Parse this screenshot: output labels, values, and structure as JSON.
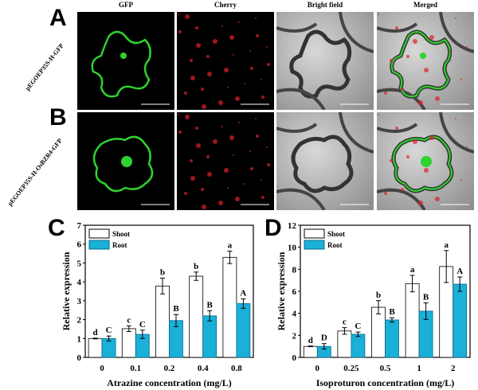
{
  "panels": {
    "letters": [
      "A",
      "B",
      "C",
      "D"
    ],
    "column_headers": [
      "GFP",
      "Cherry",
      "Bright field",
      "Merged"
    ],
    "row_labels": [
      "pEGOEP35S-H-GFP",
      "pEGOEP35S-H-OsBZR4-GFP"
    ]
  },
  "colors": {
    "shoot": "#ffffff",
    "root": "#1ab0d8",
    "gfp": "#2fd22f",
    "cherry": "#e0202a"
  },
  "chart_data": [
    {
      "type": "bar",
      "panel": "C",
      "categories": [
        "0",
        "0.1",
        "0.2",
        "0.4",
        "0.8"
      ],
      "xlabel": "Atrazine concentration (mg/L)",
      "ylabel": "Relative expression",
      "ylim": [
        0,
        7
      ],
      "yticks": [
        "0",
        "1",
        "2",
        "3",
        "4",
        "5",
        "6",
        "7"
      ],
      "legend": "top-left",
      "series": [
        {
          "name": "Shoot",
          "values": [
            1.0,
            1.52,
            3.78,
            4.3,
            5.3
          ],
          "errors": [
            0.02,
            0.15,
            0.42,
            0.22,
            0.33
          ],
          "letters": [
            "d",
            "c",
            "b",
            "b",
            "a"
          ]
        },
        {
          "name": "Root",
          "values": [
            1.0,
            1.22,
            1.95,
            2.2,
            2.85
          ],
          "errors": [
            0.13,
            0.22,
            0.32,
            0.27,
            0.25
          ],
          "letters": [
            "C",
            "C",
            "B",
            "B",
            "A"
          ]
        }
      ]
    },
    {
      "type": "bar",
      "panel": "D",
      "categories": [
        "0",
        "0.25",
        "0.5",
        "1",
        "2"
      ],
      "xlabel": "Isoproturon concentration (mg/L)",
      "ylabel": "Relative expression",
      "ylim": [
        0,
        12
      ],
      "yticks": [
        "0",
        "2",
        "4",
        "6",
        "8",
        "10",
        "12"
      ],
      "legend": "top-left",
      "series": [
        {
          "name": "Shoot",
          "values": [
            1.0,
            2.4,
            4.55,
            6.7,
            8.25
          ],
          "errors": [
            0.03,
            0.3,
            0.6,
            0.75,
            1.45
          ],
          "letters": [
            "d",
            "c",
            "b",
            "a",
            "a"
          ]
        },
        {
          "name": "Root",
          "values": [
            1.0,
            2.1,
            3.4,
            4.2,
            6.65
          ],
          "errors": [
            0.25,
            0.2,
            0.2,
            0.75,
            0.65
          ],
          "letters": [
            "D",
            "C",
            "B",
            "B",
            "A"
          ]
        }
      ]
    }
  ]
}
